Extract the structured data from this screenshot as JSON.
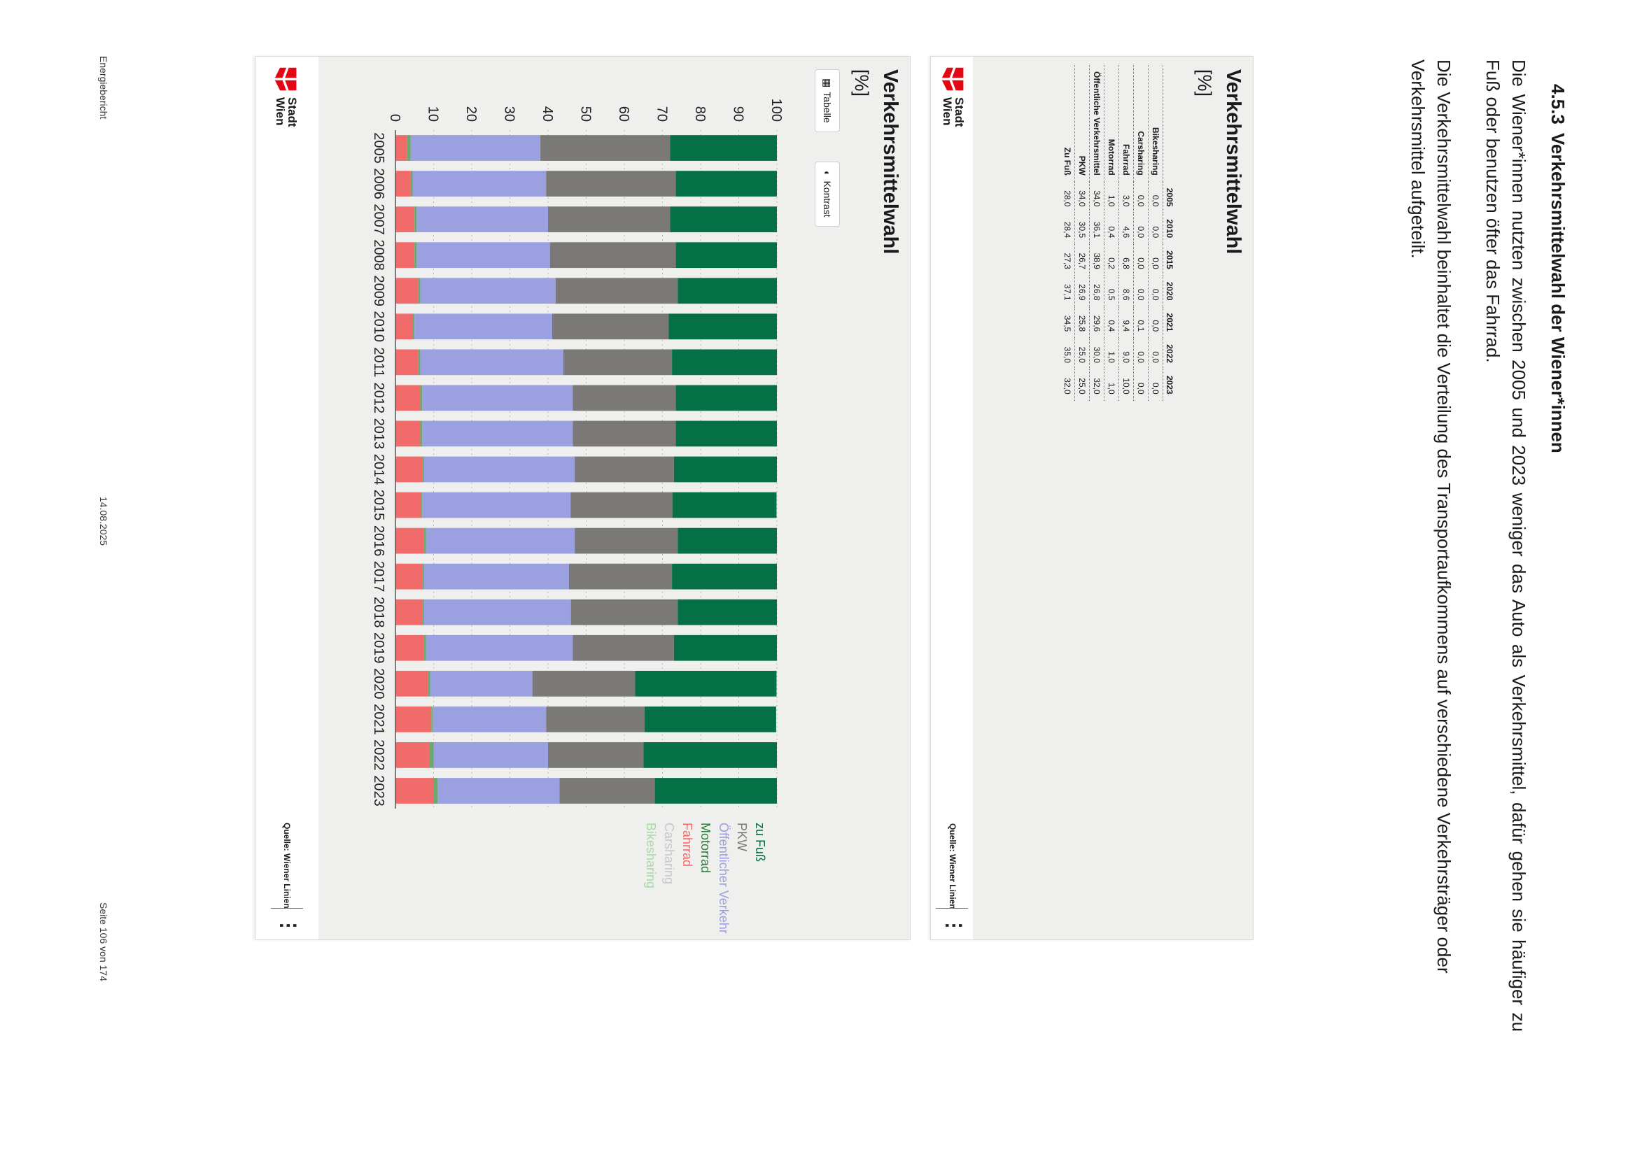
{
  "section": {
    "number": "4.5.3",
    "title": "Verkehrsmittelwahl der Wiener*innen",
    "paragraph1": "Die Wiener*innen nutzten zwischen 2005 und 2023 weniger das Auto als Verkehrsmittel, dafür gehen sie häufiger zu Fuß oder benutzen öfter das Fahrrad.",
    "paragraph2": "Die Verkehrsmittelwahl beinhaltet die Verteilung des Transportaufkommens auf verschiedene Verkehrsträger oder Verkehrsmittel aufgeteilt."
  },
  "table_card": {
    "title": "Verkehrsmittelwahl",
    "unit": "[%]",
    "columns": [
      "2005",
      "2010",
      "2015",
      "2020",
      "2021",
      "2022",
      "2023"
    ],
    "rows": [
      {
        "label": "Bikesharing",
        "values": [
          "0,0",
          "0,0",
          "0,0",
          "0,0",
          "0,0",
          "0,0",
          "0,0"
        ]
      },
      {
        "label": "Carsharing",
        "values": [
          "0,0",
          "0,0",
          "0,0",
          "0,0",
          "0,1",
          "0,0",
          "0,0"
        ]
      },
      {
        "label": "Fahrrad",
        "values": [
          "3,0",
          "4,6",
          "6,8",
          "8,6",
          "9,4",
          "9,0",
          "10,0"
        ]
      },
      {
        "label": "Motorrad",
        "values": [
          "1,0",
          "0,4",
          "0,2",
          "0,5",
          "0,4",
          "1,0",
          "1,0"
        ]
      },
      {
        "label": "Öffentliche Verkehrsmittel",
        "values": [
          "34,0",
          "36,1",
          "38,9",
          "26,8",
          "29,6",
          "30,0",
          "32,0"
        ]
      },
      {
        "label": "PKW",
        "values": [
          "34,0",
          "30,5",
          "26,7",
          "26,9",
          "25,8",
          "25,0",
          "25,0"
        ]
      },
      {
        "label": "Zu Fuß",
        "values": [
          "28,0",
          "28,4",
          "27,3",
          "37,1",
          "34,5",
          "35,0",
          "32,0"
        ]
      }
    ],
    "logo_text": [
      "Stadt",
      "Wien"
    ],
    "source_label": "Quelle: Wiener Linien",
    "menu_glyph": "⋮"
  },
  "chart_card": {
    "title": "Verkehrsmittelwahl",
    "unit": "[%]",
    "buttons": {
      "table_label": "Tabelle",
      "contrast_label": "Kontrast"
    },
    "logo_text": [
      "Stadt",
      "Wien"
    ],
    "source_label": "Quelle: Wiener Linien",
    "menu_glyph": "⋮"
  },
  "chart_data": {
    "type": "bar",
    "stacked": true,
    "orientation": "vertical",
    "title": "Verkehrsmittelwahl",
    "ylabel": "[%]",
    "ylim": [
      0,
      100
    ],
    "yticks": [
      0,
      10,
      20,
      30,
      40,
      50,
      60,
      70,
      80,
      90,
      100
    ],
    "grid": true,
    "legend_position": "right",
    "categories": [
      "2005",
      "2006",
      "2007",
      "2008",
      "2009",
      "2010",
      "2011",
      "2012",
      "2013",
      "2014",
      "2015",
      "2016",
      "2017",
      "2018",
      "2019",
      "2020",
      "2021",
      "2022",
      "2023"
    ],
    "series": [
      {
        "name": "Fahrrad",
        "color": "#f26b6b",
        "values": [
          3,
          4,
          5,
          5,
          6,
          4.6,
          6,
          6.5,
          6.5,
          7,
          6.8,
          7.5,
          7,
          7,
          7.5,
          8.6,
          9.4,
          9,
          10
        ]
      },
      {
        "name": "Motorrad",
        "color": "#6aa86f",
        "values": [
          1,
          0.5,
          0.5,
          0.5,
          0.5,
          0.4,
          0.5,
          0.5,
          0.5,
          0.5,
          0.2,
          0.5,
          0.5,
          0.5,
          0.5,
          0.5,
          0.4,
          1,
          1
        ]
      },
      {
        "name": "Carsharing",
        "color": "#c7c7c7",
        "values": [
          0,
          0,
          0,
          0,
          0,
          0,
          0,
          0,
          0,
          0,
          0,
          0,
          0,
          0,
          0,
          0,
          0.1,
          0,
          0
        ]
      },
      {
        "name": "Bikesharing",
        "color": "#a6d9a6",
        "values": [
          0,
          0,
          0,
          0,
          0,
          0,
          0,
          0,
          0,
          0,
          0,
          0,
          0,
          0,
          0,
          0,
          0,
          0,
          0
        ]
      },
      {
        "name": "Öffentlicher Verkehr",
        "color": "#9aa0e0",
        "values": [
          34,
          35,
          34.5,
          35,
          35.5,
          36.1,
          37.5,
          39.5,
          39.5,
          39.5,
          38.9,
          39,
          38,
          38.5,
          38.5,
          26.8,
          29.6,
          30,
          32
        ]
      },
      {
        "name": "PKW",
        "color": "#7b7977",
        "values": [
          34,
          34,
          32,
          33,
          32,
          30.5,
          28.5,
          27,
          27,
          26,
          26.7,
          27,
          27,
          28,
          26.5,
          26.9,
          25.8,
          25,
          25
        ]
      },
      {
        "name": "zu Fuß",
        "color": "#057046",
        "values": [
          28,
          26.5,
          28,
          26.5,
          26,
          28.4,
          27.5,
          26.5,
          26.5,
          27,
          27.3,
          26,
          27.5,
          26,
          27,
          37.1,
          34.5,
          35,
          32
        ]
      }
    ],
    "legend_entries": [
      {
        "name": "zu Fuß",
        "color": "#057046"
      },
      {
        "name": "PKW",
        "color": "#7b7977"
      },
      {
        "name": "Öffentlicher Verkehr",
        "color": "#9aa0e0"
      },
      {
        "name": "Motorrad",
        "color": "#2f7d3a"
      },
      {
        "name": "Fahrrad",
        "color": "#f26b6b"
      },
      {
        "name": "Carsharing",
        "color": "#c7c7c7"
      },
      {
        "name": "Bikesharing",
        "color": "#a6d9a6"
      }
    ]
  },
  "footer": {
    "left": "Energiebericht",
    "center": "14.08.2025",
    "right": "Seite 106 von 174"
  }
}
